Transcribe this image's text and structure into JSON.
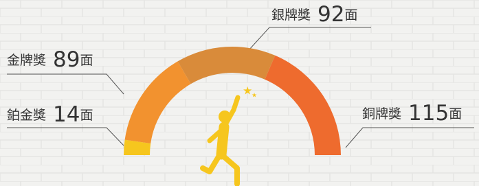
{
  "chart_data": {
    "type": "half-donut",
    "categories": [
      "鉑金獎",
      "金牌獎",
      "銀牌獎",
      "銅牌獎"
    ],
    "values": [
      14,
      89,
      92,
      115
    ],
    "unit": "面",
    "colors": [
      "#f6c61e",
      "#f2922f",
      "#d98b3a",
      "#ee6b2e"
    ]
  }
}
